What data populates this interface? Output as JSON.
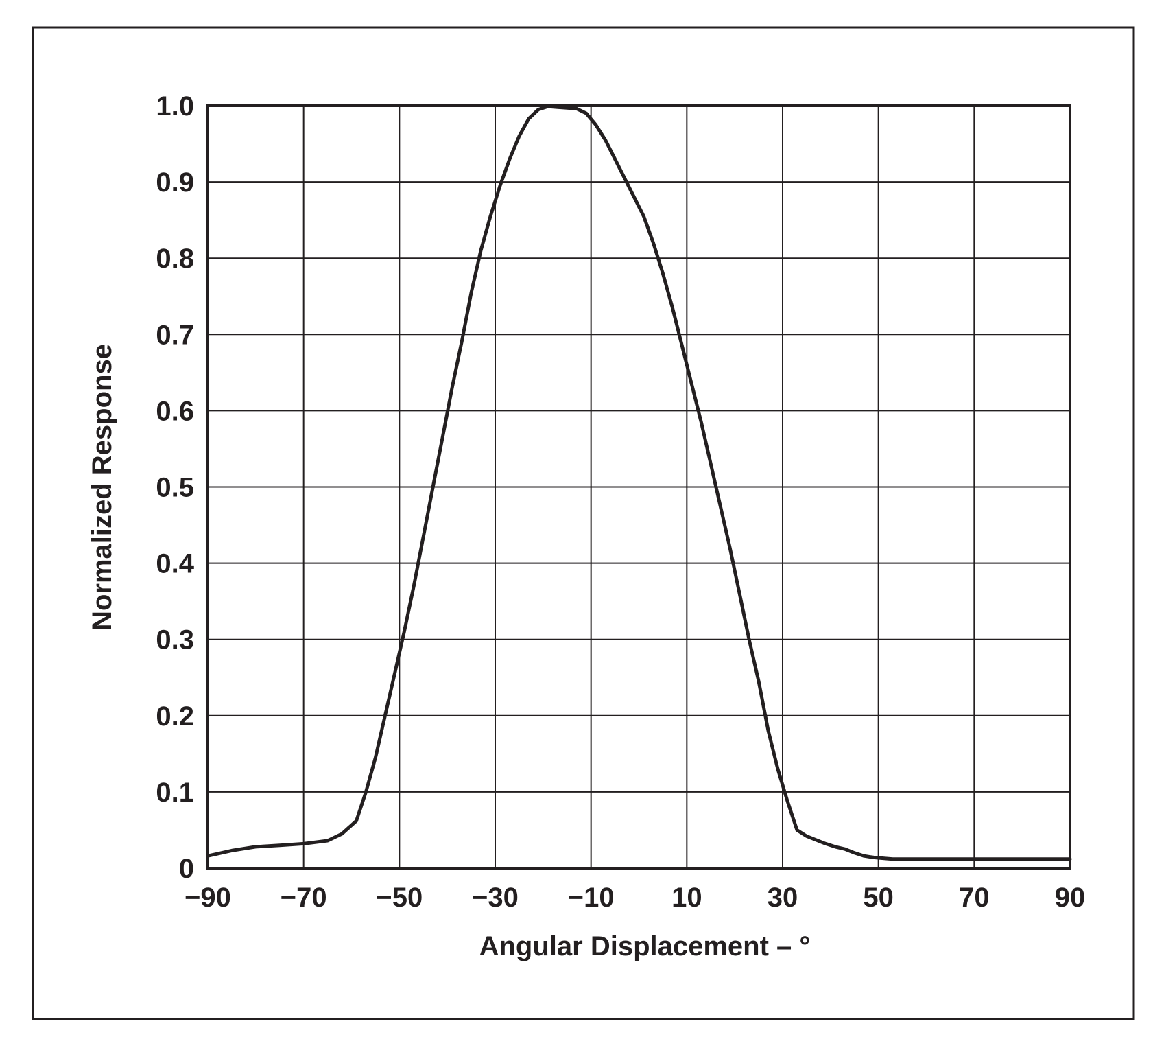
{
  "chart_data": {
    "type": "line",
    "title": "",
    "xlabel": "Angular Displacement – °",
    "ylabel": "Normalized Response",
    "xlim": [
      -90,
      90
    ],
    "ylim": [
      0,
      1.0
    ],
    "x_ticks": [
      -90,
      -70,
      -50,
      -30,
      -10,
      10,
      30,
      50,
      70,
      90
    ],
    "x_tick_labels": [
      "−90",
      "−70",
      "−50",
      "−30",
      "−10",
      "10",
      "30",
      "50",
      "70",
      "90"
    ],
    "y_ticks": [
      0,
      0.1,
      0.2,
      0.3,
      0.4,
      0.5,
      0.6,
      0.7,
      0.8,
      0.9,
      1.0
    ],
    "y_tick_labels": [
      "0",
      "0.1",
      "0.2",
      "0.3",
      "0.4",
      "0.5",
      "0.6",
      "0.7",
      "0.8",
      "0.9",
      "1.0"
    ],
    "grid": true,
    "legend": "none",
    "colors": {
      "line": "#231f20",
      "grid": "#231f20",
      "background": "#ffffff"
    },
    "series": [
      {
        "x": [
          -90,
          -85,
          -80,
          -75,
          -70,
          -65,
          -62,
          -59,
          -57,
          -55,
          -53,
          -51,
          -49,
          -47,
          -45,
          -43,
          -41,
          -39,
          -37,
          -35,
          -33,
          -31,
          -29,
          -27,
          -25,
          -23,
          -21,
          -19,
          -17,
          -15,
          -13,
          -11,
          -9,
          -7,
          -5,
          -3,
          -1,
          1,
          3,
          5,
          7,
          9,
          11,
          13,
          15,
          17,
          19,
          21,
          23,
          25,
          27,
          29,
          31,
          33,
          35,
          37,
          39,
          41,
          43,
          45,
          47,
          49,
          51,
          53,
          55,
          57,
          59,
          61,
          63,
          65,
          70,
          75,
          80,
          85,
          90
        ],
        "values": [
          0.016,
          0.023,
          0.028,
          0.03,
          0.032,
          0.036,
          0.045,
          0.062,
          0.1,
          0.145,
          0.2,
          0.255,
          0.31,
          0.37,
          0.435,
          0.5,
          0.565,
          0.63,
          0.69,
          0.755,
          0.81,
          0.855,
          0.895,
          0.93,
          0.96,
          0.983,
          0.995,
          0.999,
          0.998,
          0.997,
          0.996,
          0.99,
          0.975,
          0.955,
          0.93,
          0.905,
          0.88,
          0.855,
          0.82,
          0.78,
          0.735,
          0.685,
          0.635,
          0.585,
          0.53,
          0.475,
          0.42,
          0.36,
          0.3,
          0.245,
          0.18,
          0.13,
          0.088,
          0.05,
          0.042,
          0.037,
          0.032,
          0.028,
          0.025,
          0.02,
          0.016,
          0.014,
          0.013,
          0.012,
          0.012,
          0.012,
          0.012,
          0.012,
          0.012,
          0.012,
          0.012,
          0.012,
          0.012,
          0.012,
          0.012
        ]
      }
    ]
  }
}
